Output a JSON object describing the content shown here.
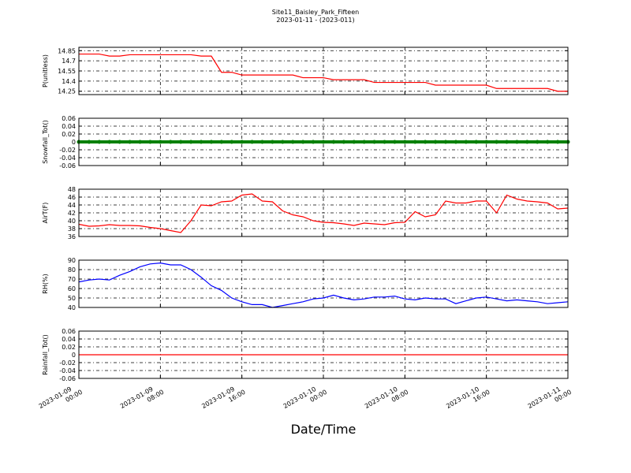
{
  "title": "Site11_Baisley_Park_Fifteen",
  "subtitle": "2023-01-11 - (2023-011)",
  "xlabel": "Date/Time",
  "chart_data": [
    {
      "type": "line",
      "ylabel": "P(unitless)",
      "color": "#ff0000",
      "ylim": [
        14.2,
        14.9
      ],
      "yticks": [
        14.25,
        14.4,
        14.55,
        14.7,
        14.85
      ],
      "xlim": [
        "2023-01-09 00:00",
        "2023-01-11 00:00"
      ],
      "xticks": [
        "2023-01-09 00:00",
        "2023-01-09 08:00",
        "2023-01-09 16:00",
        "2023-01-10 00:00",
        "2023-01-10 08:00",
        "2023-01-10 16:00",
        "2023-01-11 00:00"
      ],
      "grid": true,
      "x": [
        "2023-01-09 00:00",
        "2023-01-09 01:00",
        "2023-01-09 02:00",
        "2023-01-09 03:00",
        "2023-01-09 04:00",
        "2023-01-09 05:00",
        "2023-01-09 06:00",
        "2023-01-09 07:00",
        "2023-01-09 08:00",
        "2023-01-09 09:00",
        "2023-01-09 10:00",
        "2023-01-09 11:00",
        "2023-01-09 12:00",
        "2023-01-09 13:00",
        "2023-01-09 14:00",
        "2023-01-09 15:00",
        "2023-01-09 16:00",
        "2023-01-09 17:00",
        "2023-01-09 18:00",
        "2023-01-09 19:00",
        "2023-01-09 20:00",
        "2023-01-09 21:00",
        "2023-01-09 22:00",
        "2023-01-09 23:00",
        "2023-01-10 00:00",
        "2023-01-10 01:00",
        "2023-01-10 02:00",
        "2023-01-10 03:00",
        "2023-01-10 04:00",
        "2023-01-10 05:00",
        "2023-01-10 06:00",
        "2023-01-10 07:00",
        "2023-01-10 08:00",
        "2023-01-10 09:00",
        "2023-01-10 10:00",
        "2023-01-10 11:00",
        "2023-01-10 12:00",
        "2023-01-10 13:00",
        "2023-01-10 14:00",
        "2023-01-10 15:00",
        "2023-01-10 16:00",
        "2023-01-10 17:00",
        "2023-01-10 18:00",
        "2023-01-10 19:00",
        "2023-01-10 20:00",
        "2023-01-10 21:00",
        "2023-01-10 22:00",
        "2023-01-10 23:00",
        "2023-01-11 00:00"
      ],
      "values": [
        14.8,
        14.8,
        14.8,
        14.77,
        14.77,
        14.79,
        14.79,
        14.79,
        14.79,
        14.79,
        14.79,
        14.79,
        14.77,
        14.77,
        14.53,
        14.53,
        14.49,
        14.49,
        14.49,
        14.49,
        14.49,
        14.49,
        14.45,
        14.45,
        14.45,
        14.42,
        14.42,
        14.42,
        14.42,
        14.38,
        14.38,
        14.38,
        14.38,
        14.38,
        14.38,
        14.34,
        14.34,
        14.34,
        14.34,
        14.34,
        14.34,
        14.29,
        14.29,
        14.29,
        14.29,
        14.29,
        14.29,
        14.25,
        14.25
      ]
    },
    {
      "type": "scatter",
      "ylabel": "Snowfall_Tot()",
      "color": "#008000",
      "ylim": [
        -0.06,
        0.06
      ],
      "yticks": [
        -0.06,
        -0.04,
        -0.02,
        0.0,
        0.02,
        0.04,
        0.06
      ],
      "xlim": [
        "2023-01-09 00:00",
        "2023-01-11 00:00"
      ],
      "xticks": [
        "2023-01-09 00:00",
        "2023-01-09 08:00",
        "2023-01-09 16:00",
        "2023-01-10 00:00",
        "2023-01-10 08:00",
        "2023-01-10 16:00",
        "2023-01-11 00:00"
      ],
      "grid": true,
      "x": [
        "2023-01-09 00:00",
        "2023-01-09 01:00",
        "2023-01-09 02:00",
        "2023-01-09 03:00",
        "2023-01-09 04:00",
        "2023-01-09 05:00",
        "2023-01-09 06:00",
        "2023-01-09 07:00",
        "2023-01-09 08:00",
        "2023-01-09 09:00",
        "2023-01-09 10:00",
        "2023-01-09 11:00",
        "2023-01-09 12:00",
        "2023-01-09 13:00",
        "2023-01-09 14:00",
        "2023-01-09 15:00",
        "2023-01-09 16:00",
        "2023-01-09 17:00",
        "2023-01-09 18:00",
        "2023-01-09 19:00",
        "2023-01-09 20:00",
        "2023-01-09 21:00",
        "2023-01-09 22:00",
        "2023-01-09 23:00",
        "2023-01-10 00:00",
        "2023-01-10 01:00",
        "2023-01-10 02:00",
        "2023-01-10 03:00",
        "2023-01-10 04:00",
        "2023-01-10 05:00",
        "2023-01-10 06:00",
        "2023-01-10 07:00",
        "2023-01-10 08:00",
        "2023-01-10 09:00",
        "2023-01-10 10:00",
        "2023-01-10 11:00",
        "2023-01-10 12:00",
        "2023-01-10 13:00",
        "2023-01-10 14:00",
        "2023-01-10 15:00",
        "2023-01-10 16:00",
        "2023-01-10 17:00",
        "2023-01-10 18:00",
        "2023-01-10 19:00",
        "2023-01-10 20:00",
        "2023-01-10 21:00",
        "2023-01-10 22:00",
        "2023-01-10 23:00",
        "2023-01-11 00:00"
      ],
      "values": [
        0,
        0,
        0,
        0,
        0,
        0,
        0,
        0,
        0,
        0,
        0,
        0,
        0,
        0,
        0,
        0,
        0,
        0,
        0,
        0,
        0,
        0,
        0,
        0,
        0,
        0,
        0,
        0,
        0,
        0,
        0,
        0,
        0,
        0,
        0,
        0,
        0,
        0,
        0,
        0,
        0,
        0,
        0,
        0,
        0,
        0,
        0,
        0,
        0
      ]
    },
    {
      "type": "line",
      "ylabel": "AirT(F)",
      "color": "#ff0000",
      "ylim": [
        36,
        48
      ],
      "yticks": [
        36,
        38,
        40,
        42,
        44,
        46,
        48
      ],
      "xlim": [
        "2023-01-09 00:00",
        "2023-01-11 00:00"
      ],
      "xticks": [
        "2023-01-09 00:00",
        "2023-01-09 08:00",
        "2023-01-09 16:00",
        "2023-01-10 00:00",
        "2023-01-10 08:00",
        "2023-01-10 16:00",
        "2023-01-11 00:00"
      ],
      "grid": true,
      "x": [
        "2023-01-09 00:00",
        "2023-01-09 01:00",
        "2023-01-09 02:00",
        "2023-01-09 03:00",
        "2023-01-09 04:00",
        "2023-01-09 05:00",
        "2023-01-09 06:00",
        "2023-01-09 07:00",
        "2023-01-09 08:00",
        "2023-01-09 09:00",
        "2023-01-09 10:00",
        "2023-01-09 11:00",
        "2023-01-09 12:00",
        "2023-01-09 13:00",
        "2023-01-09 14:00",
        "2023-01-09 15:00",
        "2023-01-09 16:00",
        "2023-01-09 17:00",
        "2023-01-09 18:00",
        "2023-01-09 19:00",
        "2023-01-09 20:00",
        "2023-01-09 21:00",
        "2023-01-09 22:00",
        "2023-01-09 23:00",
        "2023-01-10 00:00",
        "2023-01-10 01:00",
        "2023-01-10 02:00",
        "2023-01-10 03:00",
        "2023-01-10 04:00",
        "2023-01-10 05:00",
        "2023-01-10 06:00",
        "2023-01-10 07:00",
        "2023-01-10 08:00",
        "2023-01-10 09:00",
        "2023-01-10 10:00",
        "2023-01-10 11:00",
        "2023-01-10 12:00",
        "2023-01-10 13:00",
        "2023-01-10 14:00",
        "2023-01-10 15:00",
        "2023-01-10 16:00",
        "2023-01-10 17:00",
        "2023-01-10 18:00",
        "2023-01-10 19:00",
        "2023-01-10 20:00",
        "2023-01-10 21:00",
        "2023-01-10 22:00",
        "2023-01-10 23:00",
        "2023-01-11 00:00"
      ],
      "values": [
        39.1,
        38.6,
        38.7,
        39,
        38.8,
        38.8,
        38.7,
        38.3,
        38,
        37.5,
        37,
        40,
        44,
        43.8,
        44.8,
        45,
        46.5,
        46.8,
        45,
        44.8,
        42.5,
        41.5,
        41,
        40,
        39.6,
        39.5,
        39.2,
        38.8,
        39.4,
        39.2,
        39,
        39.5,
        39.6,
        42.3,
        41,
        41.5,
        45,
        44.5,
        44.5,
        45,
        45,
        42,
        46.5,
        45.5,
        45,
        44.8,
        44.5,
        43,
        43.2
      ]
    },
    {
      "type": "line",
      "ylabel": "RH(%)",
      "color": "#0000ff",
      "ylim": [
        40,
        90
      ],
      "yticks": [
        40,
        50,
        60,
        70,
        80,
        90
      ],
      "xlim": [
        "2023-01-09 00:00",
        "2023-01-11 00:00"
      ],
      "xticks": [
        "2023-01-09 00:00",
        "2023-01-09 08:00",
        "2023-01-09 16:00",
        "2023-01-10 00:00",
        "2023-01-10 08:00",
        "2023-01-10 16:00",
        "2023-01-11 00:00"
      ],
      "grid": true,
      "x": [
        "2023-01-09 00:00",
        "2023-01-09 01:00",
        "2023-01-09 02:00",
        "2023-01-09 03:00",
        "2023-01-09 04:00",
        "2023-01-09 05:00",
        "2023-01-09 06:00",
        "2023-01-09 07:00",
        "2023-01-09 08:00",
        "2023-01-09 09:00",
        "2023-01-09 10:00",
        "2023-01-09 11:00",
        "2023-01-09 12:00",
        "2023-01-09 13:00",
        "2023-01-09 14:00",
        "2023-01-09 15:00",
        "2023-01-09 16:00",
        "2023-01-09 17:00",
        "2023-01-09 18:00",
        "2023-01-09 19:00",
        "2023-01-09 20:00",
        "2023-01-09 21:00",
        "2023-01-09 22:00",
        "2023-01-09 23:00",
        "2023-01-10 00:00",
        "2023-01-10 01:00",
        "2023-01-10 02:00",
        "2023-01-10 03:00",
        "2023-01-10 04:00",
        "2023-01-10 05:00",
        "2023-01-10 06:00",
        "2023-01-10 07:00",
        "2023-01-10 08:00",
        "2023-01-10 09:00",
        "2023-01-10 10:00",
        "2023-01-10 11:00",
        "2023-01-10 12:00",
        "2023-01-10 13:00",
        "2023-01-10 14:00",
        "2023-01-10 15:00",
        "2023-01-10 16:00",
        "2023-01-10 17:00",
        "2023-01-10 18:00",
        "2023-01-10 19:00",
        "2023-01-10 20:00",
        "2023-01-10 21:00",
        "2023-01-10 22:00",
        "2023-01-10 23:00",
        "2023-01-11 00:00"
      ],
      "values": [
        67,
        69,
        70,
        69,
        74,
        78,
        83,
        86,
        87,
        85,
        85,
        80,
        72,
        63,
        58,
        50,
        46,
        43,
        43,
        40,
        42,
        44,
        46,
        49,
        50,
        53,
        50,
        48,
        49,
        51,
        51,
        52,
        49,
        48,
        50,
        49,
        49,
        44,
        47,
        50,
        51,
        49,
        47,
        48,
        47,
        46,
        44,
        45,
        46
      ]
    },
    {
      "type": "line",
      "ylabel": "Rainfall_Tot()",
      "color": "#ff0000",
      "ylim": [
        -0.06,
        0.06
      ],
      "yticks": [
        -0.06,
        -0.04,
        -0.02,
        0.0,
        0.02,
        0.04,
        0.06
      ],
      "xlim": [
        "2023-01-09 00:00",
        "2023-01-11 00:00"
      ],
      "xticks": [
        "2023-01-09 00:00",
        "2023-01-09 08:00",
        "2023-01-09 16:00",
        "2023-01-10 00:00",
        "2023-01-10 08:00",
        "2023-01-10 16:00",
        "2023-01-11 00:00"
      ],
      "grid": true,
      "x": [
        "2023-01-09 00:00",
        "2023-01-11 00:00"
      ],
      "values": [
        0,
        0
      ]
    }
  ]
}
